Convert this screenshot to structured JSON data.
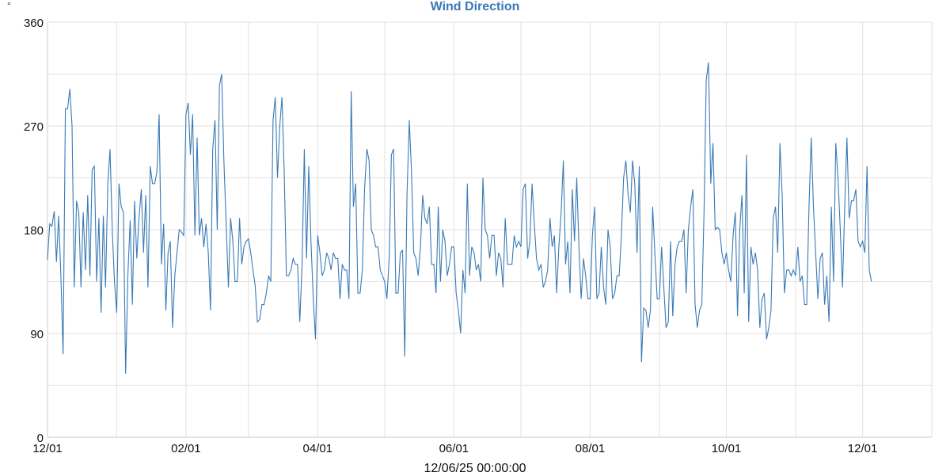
{
  "chart_data": {
    "type": "line",
    "title": "Wind Direction",
    "ylabel": "°",
    "xlabel": "12/06/25 00:00:00",
    "ylim": [
      0,
      360
    ],
    "yticks": [
      0,
      90,
      180,
      270,
      360
    ],
    "ygrid_step": 45,
    "xlim": [
      "2024-12-01",
      "2026-01-01"
    ],
    "xticks": [
      {
        "date": "2024-12-01",
        "label": "12/01"
      },
      {
        "date": "2025-02-01",
        "label": "02/01"
      },
      {
        "date": "2025-04-01",
        "label": "04/01"
      },
      {
        "date": "2025-06-01",
        "label": "06/01"
      },
      {
        "date": "2025-08-01",
        "label": "08/01"
      },
      {
        "date": "2025-10-01",
        "label": "10/01"
      },
      {
        "date": "2025-12-01",
        "label": "12/01"
      }
    ],
    "xgrid": "monthly",
    "grid": true,
    "line_color": "#3a7ab5",
    "grid_color": "#e6e6e6",
    "title_color": "#3a78b5",
    "series": [
      {
        "month": "2024-12",
        "daily": [
          154,
          185,
          183,
          196,
          152,
          192,
          140,
          72,
          285,
          285,
          302,
          270,
          130,
          205,
          195,
          130,
          195,
          145,
          210,
          140,
          232,
          235,
          135,
          190,
          108,
          192,
          130,
          220,
          250,
          180,
          135
        ]
      },
      {
        "month": "2025-01",
        "daily": [
          108,
          220,
          200,
          195,
          55,
          140,
          188,
          115,
          205,
          155,
          190,
          215,
          160,
          210,
          130,
          235,
          220,
          220,
          230,
          280,
          150,
          185,
          110,
          160,
          170,
          95,
          140,
          160,
          180,
          178,
          175
        ]
      },
      {
        "month": "2025-02",
        "daily": [
          280,
          290,
          245,
          280,
          175,
          260,
          175,
          190,
          165,
          185,
          160,
          110,
          250,
          275,
          180,
          305,
          315,
          240,
          185,
          130,
          190,
          170,
          135,
          135,
          190,
          150,
          165,
          170
        ]
      },
      {
        "month": "2025-03",
        "daily": [
          172,
          160,
          145,
          132,
          100,
          102,
          115,
          115,
          125,
          140,
          135,
          275,
          295,
          225,
          270,
          295,
          230,
          140,
          140,
          145,
          155,
          150,
          150,
          100,
          150,
          250,
          155,
          235,
          170,
          120,
          85
        ]
      },
      {
        "month": "2025-04",
        "daily": [
          175,
          160,
          140,
          145,
          160,
          155,
          145,
          160,
          155,
          155,
          120,
          150,
          145,
          145,
          120,
          300,
          200,
          220,
          125,
          125,
          145,
          215,
          250,
          240,
          180,
          175,
          165,
          165,
          145,
          140
        ]
      },
      {
        "month": "2025-05",
        "daily": [
          135,
          120,
          155,
          245,
          250,
          125,
          125,
          160,
          162,
          70,
          210,
          275,
          230,
          160,
          155,
          140,
          165,
          210,
          190,
          185,
          200,
          150,
          150,
          125,
          200,
          135,
          180,
          170,
          140,
          150,
          165
        ]
      },
      {
        "month": "2025-06",
        "daily": [
          165,
          125,
          110,
          90,
          145,
          125,
          220,
          140,
          165,
          160,
          145,
          150,
          135,
          225,
          180,
          175,
          155,
          175,
          175,
          140,
          160,
          155,
          130,
          190,
          150,
          150,
          150,
          175,
          165,
          170
        ]
      },
      {
        "month": "2025-07",
        "daily": [
          165,
          215,
          220,
          155,
          170,
          220,
          185,
          155,
          145,
          150,
          130,
          135,
          145,
          190,
          165,
          175,
          125,
          165,
          195,
          240,
          150,
          170,
          125,
          215,
          170,
          225,
          165,
          120,
          155,
          140,
          120
        ]
      },
      {
        "month": "2025-08",
        "daily": [
          120,
          175,
          200,
          120,
          125,
          165,
          130,
          115,
          180,
          165,
          120,
          125,
          140,
          140,
          175,
          225,
          240,
          210,
          195,
          240,
          220,
          160,
          235,
          65,
          112,
          110,
          95,
          110,
          200,
          160,
          120
        ]
      },
      {
        "month": "2025-09",
        "daily": [
          120,
          165,
          130,
          95,
          100,
          170,
          105,
          150,
          165,
          170,
          170,
          180,
          125,
          180,
          200,
          215,
          115,
          95,
          110,
          115,
          195,
          310,
          325,
          220,
          255,
          180,
          182,
          180,
          160,
          150
        ]
      },
      {
        "month": "2025-10",
        "daily": [
          160,
          145,
          135,
          175,
          195,
          105,
          180,
          210,
          125,
          245,
          100,
          165,
          150,
          160,
          145,
          95,
          120,
          125,
          85,
          95,
          110,
          190,
          200,
          160,
          255,
          210,
          125,
          145,
          145,
          140,
          145
        ]
      },
      {
        "month": "2025-11",
        "daily": [
          140,
          165,
          135,
          140,
          115,
          115,
          200,
          260,
          200,
          160,
          120,
          155,
          160,
          115,
          140,
          100,
          200,
          135,
          255,
          225,
          180,
          130,
          200,
          260,
          190,
          205,
          205,
          215,
          170,
          165
        ]
      },
      {
        "month": "2025-12",
        "daily": [
          170,
          160,
          235,
          145,
          135
        ]
      }
    ]
  }
}
